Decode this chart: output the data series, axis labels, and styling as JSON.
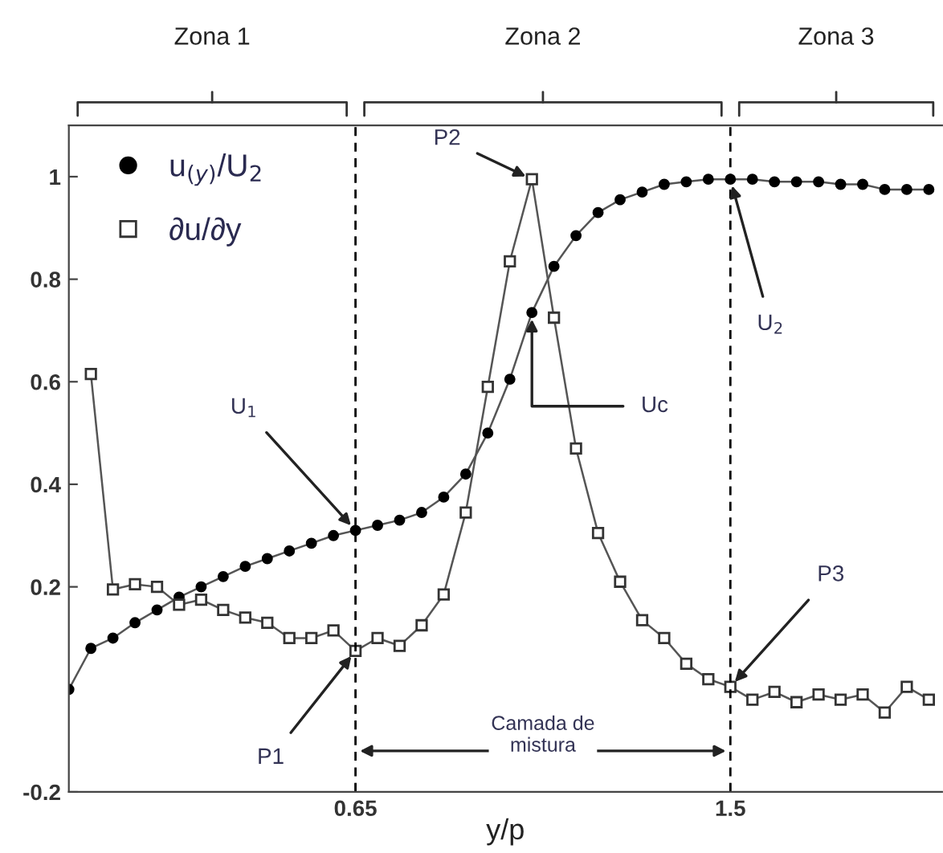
{
  "chart_data": {
    "type": "line",
    "xlabel": "y/p",
    "x": [
      0,
      0.05,
      0.1,
      0.15,
      0.2,
      0.25,
      0.3,
      0.35,
      0.4,
      0.45,
      0.5,
      0.55,
      0.6,
      0.65,
      0.7,
      0.75,
      0.8,
      0.85,
      0.9,
      0.95,
      1.0,
      1.05,
      1.1,
      1.15,
      1.2,
      1.25,
      1.3,
      1.35,
      1.4,
      1.45,
      1.5,
      1.55,
      1.6,
      1.65,
      1.7,
      1.75,
      1.8,
      1.85,
      1.9,
      1.95
    ],
    "series": [
      {
        "name": "u$_{(y)}$/U$_{2}$",
        "color": "#000000",
        "marker": "circle",
        "values": [
          0,
          0.08,
          0.1,
          0.13,
          0.155,
          0.18,
          0.2,
          0.22,
          0.24,
          0.255,
          0.27,
          0.285,
          0.3,
          0.31,
          0.32,
          0.33,
          0.345,
          0.375,
          0.42,
          0.5,
          0.605,
          0.735,
          0.825,
          0.885,
          0.93,
          0.955,
          0.97,
          0.985,
          0.99,
          0.995,
          0.995,
          0.995,
          0.99,
          0.99,
          0.99,
          0.985,
          0.985,
          0.975,
          0.975,
          0.975
        ]
      },
      {
        "name": "∂u/∂y",
        "color": "#333333",
        "marker": "square",
        "values": [
          null,
          0.615,
          0.195,
          0.205,
          0.2,
          0.165,
          0.175,
          0.155,
          0.14,
          0.13,
          0.1,
          0.1,
          0.115,
          0.075,
          0.1,
          0.085,
          0.125,
          0.185,
          0.345,
          0.59,
          0.835,
          0.995,
          0.725,
          0.47,
          0.305,
          0.21,
          0.135,
          0.1,
          0.05,
          0.02,
          0.005,
          -0.02,
          -0.005,
          -0.025,
          -0.01,
          -0.02,
          -0.01,
          -0.045,
          0.005,
          -0.02
        ]
      }
    ],
    "xlim": [
      0,
      1.98
    ],
    "ylim": [
      -0.2,
      1.1
    ],
    "xticks": [
      0.65,
      1.5
    ],
    "yticks": [
      -0.2,
      0.2,
      0.4,
      0.6,
      0.8,
      1
    ],
    "ref_lines": [
      {
        "axis": "x",
        "value": 0.65,
        "line_style": "dashed",
        "color": "#000000"
      },
      {
        "axis": "x",
        "value": 1.5,
        "line_style": "dashed",
        "color": "#000000"
      }
    ],
    "annotations": [
      "Zona 1",
      "Zona 2",
      "Zona 3",
      {
        "text": "U$_{1}$",
        "x": 0.65,
        "y": 0.31
      },
      {
        "text": "P2",
        "x": 1.05,
        "y": 0.995
      },
      {
        "text": "Uc",
        "x": 1.05,
        "y": 0.735
      },
      {
        "text": "U$_{2}$",
        "x": 1.5,
        "y": 0.995
      },
      {
        "text": "P3",
        "x": 1.5,
        "y": 0.005
      },
      {
        "text": "P1",
        "x": 0.65,
        "y": 0.075
      },
      "Camada de\nmistura"
    ],
    "legend": "top left",
    "grid": false
  }
}
